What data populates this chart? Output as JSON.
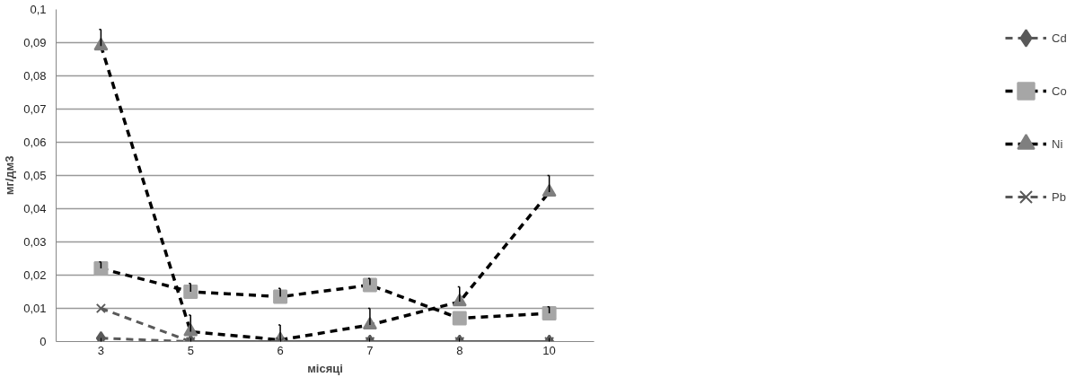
{
  "chart_data": {
    "type": "line",
    "xlabel": "місяці",
    "ylabel": "мг/дм3",
    "categories": [
      "3",
      "5",
      "6",
      "7",
      "8",
      "10"
    ],
    "ylim": [
      0,
      0.1
    ],
    "yticks": [
      0,
      {
        "value": 0.01,
        "label": "0,01"
      },
      {
        "value": 0.02,
        "label": "0,02"
      },
      {
        "value": 0.03,
        "label": "0,03"
      },
      {
        "value": 0.04,
        "label": "0,04"
      },
      {
        "value": 0.05,
        "label": "0,05"
      },
      {
        "value": 0.06,
        "label": "0,06"
      },
      {
        "value": 0.07,
        "label": "0,07"
      },
      {
        "value": 0.08,
        "label": "0,08"
      },
      {
        "value": 0.09,
        "label": "0,09"
      },
      {
        "value": 0.1,
        "label": "0,1"
      }
    ],
    "grid": "y",
    "legend": "right",
    "line_style": "dashed",
    "series": [
      {
        "name": "Cd",
        "color": "#595959",
        "colors": [
          "#595959",
          "#595959",
          "#595959",
          "#595959",
          "#595959",
          "#595959"
        ],
        "marker": "diamond",
        "values": [
          0.001,
          0,
          0,
          0,
          0,
          0
        ]
      },
      {
        "name": "Co",
        "color": "#000000",
        "colors": [
          "#a6a6a6",
          "#a6a6a6",
          "#a6a6a6",
          "#a6a6a6",
          "#a6a6a6",
          "#a6a6a6"
        ],
        "marker": "square",
        "values": [
          0.022,
          0.015,
          0.0135,
          0.017,
          0.007,
          0.0085
        ],
        "errors": [
          [
            0.022,
            0.024
          ],
          [
            0.015,
            0.0175
          ],
          [
            0.0135,
            0.016
          ],
          [
            0.017,
            0.019
          ],
          null,
          [
            0.0085,
            0.0105
          ]
        ]
      },
      {
        "name": "Ni",
        "color": "#000000",
        "colors": [
          "#7f7f7f",
          "#7f7f7f",
          "#7f7f7f",
          "#7f7f7f",
          "#7f7f7f",
          "#7f7f7f"
        ],
        "marker": "triangle",
        "values": [
          0.089,
          0.003,
          0.0005,
          0.005,
          0.012,
          0.045
        ],
        "errors": [
          [
            0.089,
            0.094
          ],
          [
            0.003,
            0.008
          ],
          [
            0.0005,
            0.005
          ],
          [
            0.005,
            0.01
          ],
          [
            0.012,
            0.0165
          ],
          [
            0.045,
            0.05
          ]
        ]
      },
      {
        "name": "Pb",
        "color": "#595959",
        "colors": [
          "#595959",
          "#595959",
          "#595959",
          "#595959",
          "#595959",
          "#595959"
        ],
        "marker": "x",
        "values": [
          0.01,
          0,
          0,
          0,
          0,
          0
        ]
      }
    ]
  }
}
